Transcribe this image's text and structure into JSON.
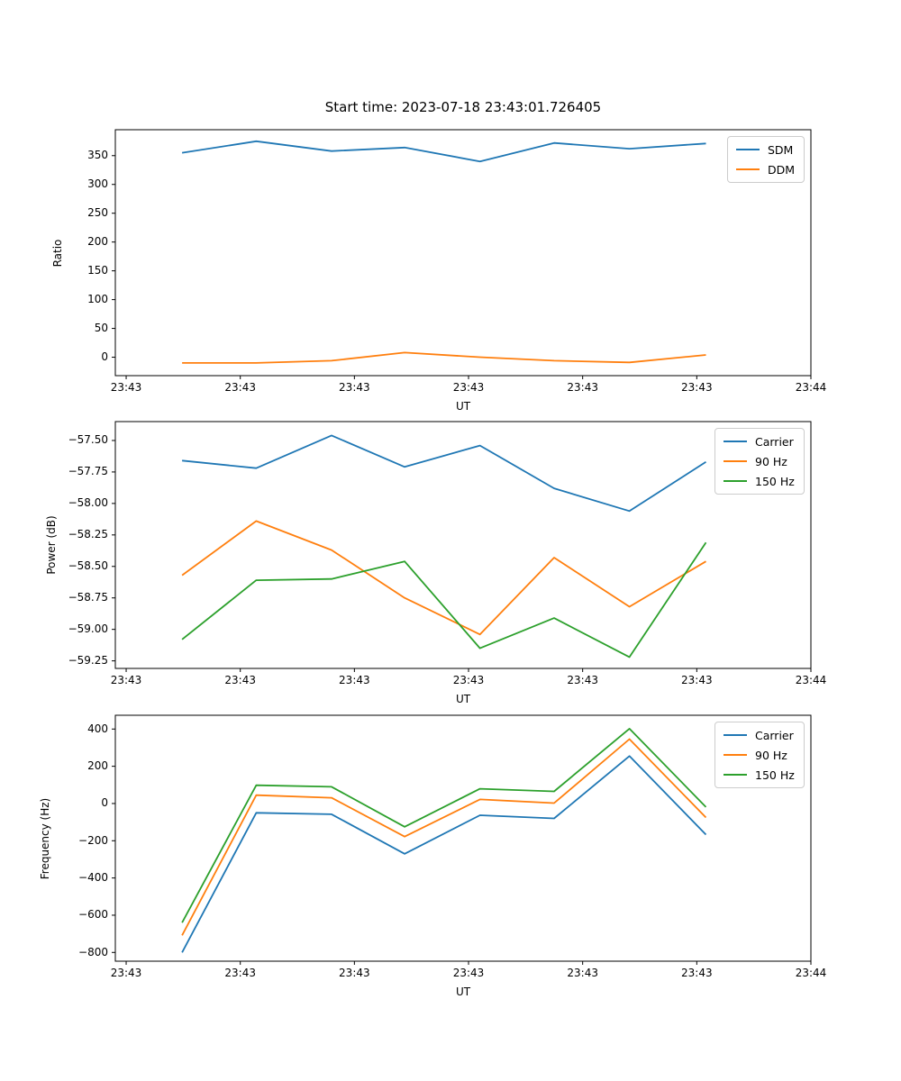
{
  "figure": {
    "title": "Start time: 2023-07-18 23:43:01.726405"
  },
  "colors": {
    "blue": "#1f77b4",
    "orange": "#ff7f0e",
    "green": "#2ca02c",
    "spine": "#000000",
    "legend_border": "#cccccc"
  },
  "chart_data": [
    {
      "type": "line",
      "title": "",
      "xlabel": "UT",
      "ylabel": "Ratio",
      "xlim": [
        -0.95,
        60
      ],
      "ylim": [
        -32,
        395
      ],
      "grid": false,
      "legend_position": "upper right",
      "x_seconds": [
        4.9,
        11.4,
        18.0,
        24.4,
        31.0,
        37.5,
        44.1,
        50.8
      ],
      "xticks": {
        "positions": [
          0,
          10,
          20,
          30,
          40,
          50,
          60
        ],
        "labels": [
          "23:43",
          "23:43",
          "23:43",
          "23:43",
          "23:43",
          "23:43",
          "23:44"
        ]
      },
      "yticks": {
        "positions": [
          0,
          50,
          100,
          150,
          200,
          250,
          300,
          350
        ],
        "labels": [
          "0",
          "50",
          "100",
          "150",
          "200",
          "250",
          "300",
          "350"
        ]
      },
      "series": [
        {
          "name": "SDM",
          "color": "#1f77b4",
          "values": [
            355,
            375,
            358,
            364,
            340,
            372,
            362,
            371
          ]
        },
        {
          "name": "DDM",
          "color": "#ff7f0e",
          "values": [
            -10,
            -10,
            -6,
            8,
            0,
            -6,
            -9,
            4
          ]
        }
      ]
    },
    {
      "type": "line",
      "title": "",
      "xlabel": "UT",
      "ylabel": "Power (dB)",
      "xlim": [
        -0.95,
        60
      ],
      "ylim": [
        -59.31,
        -57.35
      ],
      "grid": false,
      "legend_position": "upper right",
      "x_seconds": [
        4.9,
        11.4,
        18.0,
        24.4,
        31.0,
        37.5,
        44.1,
        50.8
      ],
      "xticks": {
        "positions": [
          0,
          10,
          20,
          30,
          40,
          50,
          60
        ],
        "labels": [
          "23:43",
          "23:43",
          "23:43",
          "23:43",
          "23:43",
          "23:43",
          "23:44"
        ]
      },
      "yticks": {
        "positions": [
          -59.25,
          -59.0,
          -58.75,
          -58.5,
          -58.25,
          -58.0,
          -57.75,
          -57.5
        ],
        "labels": [
          "−59.25",
          "−59.00",
          "−58.75",
          "−58.50",
          "−58.25",
          "−58.00",
          "−57.75",
          "−57.50"
        ]
      },
      "series": [
        {
          "name": "Carrier",
          "color": "#1f77b4",
          "values": [
            -57.66,
            -57.72,
            -57.46,
            -57.71,
            -57.54,
            -57.88,
            -58.06,
            -57.67
          ]
        },
        {
          "name": "90 Hz",
          "color": "#ff7f0e",
          "values": [
            -58.57,
            -58.14,
            -58.37,
            -58.75,
            -59.04,
            -58.43,
            -58.82,
            -58.46
          ]
        },
        {
          "name": "150 Hz",
          "color": "#2ca02c",
          "values": [
            -59.08,
            -58.61,
            -58.6,
            -58.46,
            -59.15,
            -58.91,
            -59.22,
            -58.31
          ]
        }
      ]
    },
    {
      "type": "line",
      "title": "",
      "xlabel": "UT",
      "ylabel": "Frequency (Hz)",
      "xlim": [
        -0.95,
        60
      ],
      "ylim": [
        -847,
        474
      ],
      "grid": false,
      "legend_position": "upper right",
      "x_seconds": [
        4.9,
        11.4,
        18.0,
        24.4,
        31.0,
        37.5,
        44.1,
        50.8
      ],
      "xticks": {
        "positions": [
          0,
          10,
          20,
          30,
          40,
          50,
          60
        ],
        "labels": [
          "23:43",
          "23:43",
          "23:43",
          "23:43",
          "23:43",
          "23:43",
          "23:44"
        ]
      },
      "yticks": {
        "positions": [
          -800,
          -600,
          -400,
          -200,
          0,
          200,
          400
        ],
        "labels": [
          "−800",
          "−600",
          "−400",
          "−200",
          "0",
          "200",
          "400"
        ]
      },
      "series": [
        {
          "name": "Carrier",
          "color": "#1f77b4",
          "values": [
            -800,
            -50,
            -58,
            -270,
            -63,
            -80,
            255,
            -167
          ]
        },
        {
          "name": "90 Hz",
          "color": "#ff7f0e",
          "values": [
            -708,
            45,
            31,
            -178,
            22,
            2,
            346,
            -75
          ]
        },
        {
          "name": "150 Hz",
          "color": "#2ca02c",
          "values": [
            -640,
            98,
            90,
            -125,
            79,
            65,
            402,
            -19
          ]
        }
      ]
    }
  ]
}
